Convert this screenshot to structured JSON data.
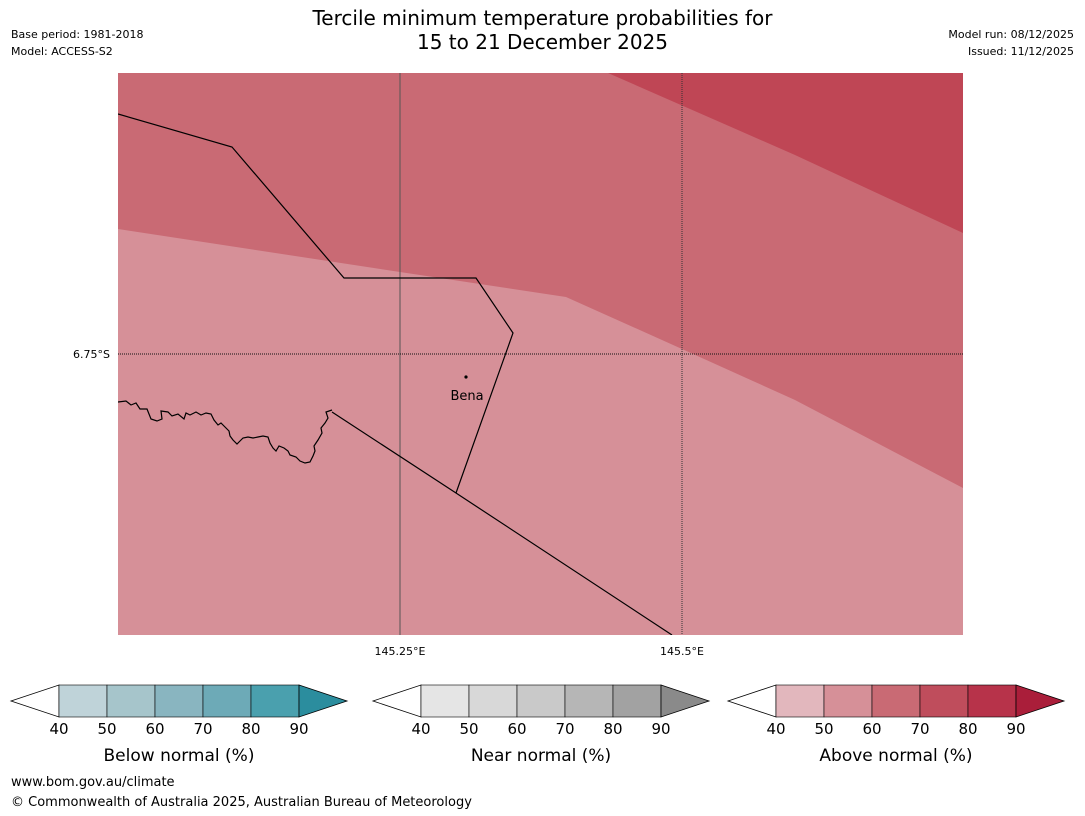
{
  "title": {
    "line1": "Tercile minimum temperature probabilities for",
    "line2": "15 to 21 December 2025"
  },
  "meta": {
    "base_period": "Base period: 1981-2018",
    "model": "Model: ACCESS-S2",
    "model_run": "Model run: 08/12/2025",
    "issued": "Issued: 11/12/2025"
  },
  "map": {
    "lat_label": "6.75°S",
    "lon_labels": [
      "145.25°E",
      "145.5°E"
    ],
    "place_name": "Bena",
    "band_colors": {
      "above_50_60": "#d69098",
      "above_60_70": "#c96a74",
      "above_70_80": "#bf4655"
    }
  },
  "legends": [
    {
      "name": "below",
      "label": "Below normal (%)",
      "ticks": [
        "40",
        "50",
        "60",
        "70",
        "80",
        "90"
      ],
      "colors": [
        "#bfd3d9",
        "#a6c5cb",
        "#89b5c0",
        "#6daab7",
        "#4aa0ae",
        "#2b8d9e"
      ]
    },
    {
      "name": "near",
      "label": "Near normal (%)",
      "ticks": [
        "40",
        "50",
        "60",
        "70",
        "80",
        "90"
      ],
      "colors": [
        "#e5e5e5",
        "#d8d8d8",
        "#c9c9c9",
        "#b6b6b6",
        "#a2a2a2",
        "#8a8a8a"
      ]
    },
    {
      "name": "above",
      "label": "Above normal (%)",
      "ticks": [
        "40",
        "50",
        "60",
        "70",
        "80",
        "90"
      ],
      "colors": [
        "#e2b7bd",
        "#d69098",
        "#c96a74",
        "#bf4d5c",
        "#b7334a",
        "#aa1e3a"
      ]
    }
  ],
  "footer": {
    "url": "www.bom.gov.au/climate",
    "copyright": "© Commonwealth of Australia 2025, Australian Bureau of Meteorology"
  }
}
